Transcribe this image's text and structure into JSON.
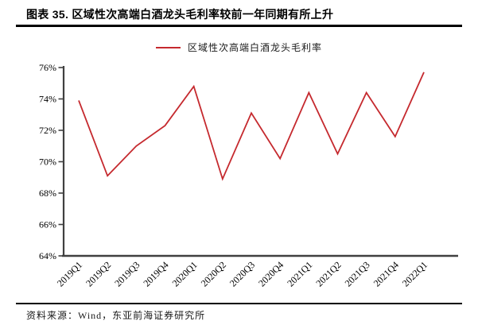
{
  "figure": {
    "title": "图表 35. 区域性次高端白酒龙头毛利率较前一年同期有所上升",
    "source_note": "资料来源：Wind，东亚前海证券研究所"
  },
  "legend": {
    "label": "区域性次高端白酒龙头毛利率"
  },
  "chart_data": {
    "type": "line",
    "title": "区域性次高端白酒龙头毛利率",
    "categories": [
      "2019Q1",
      "2019Q2",
      "2019Q3",
      "2019Q4",
      "2020Q1",
      "2020Q2",
      "2020Q3",
      "2020Q4",
      "2021Q1",
      "2021Q2",
      "2021Q3",
      "2021Q4",
      "2022Q1"
    ],
    "series": [
      {
        "name": "区域性次高端白酒龙头毛利率",
        "color": "#c5292e",
        "values": [
          73.9,
          69.1,
          71.0,
          72.3,
          74.8,
          68.9,
          73.1,
          70.2,
          74.4,
          70.5,
          74.4,
          71.6,
          75.7
        ]
      }
    ],
    "ylim": [
      64,
      76
    ],
    "yticks": [
      64,
      66,
      68,
      70,
      72,
      74,
      76
    ],
    "ytick_suffix": "%",
    "x_tick_rotation": 45,
    "grid": false,
    "legend_position": "top-center",
    "axis_color": "#404040",
    "tick_label_color": "#000000"
  }
}
